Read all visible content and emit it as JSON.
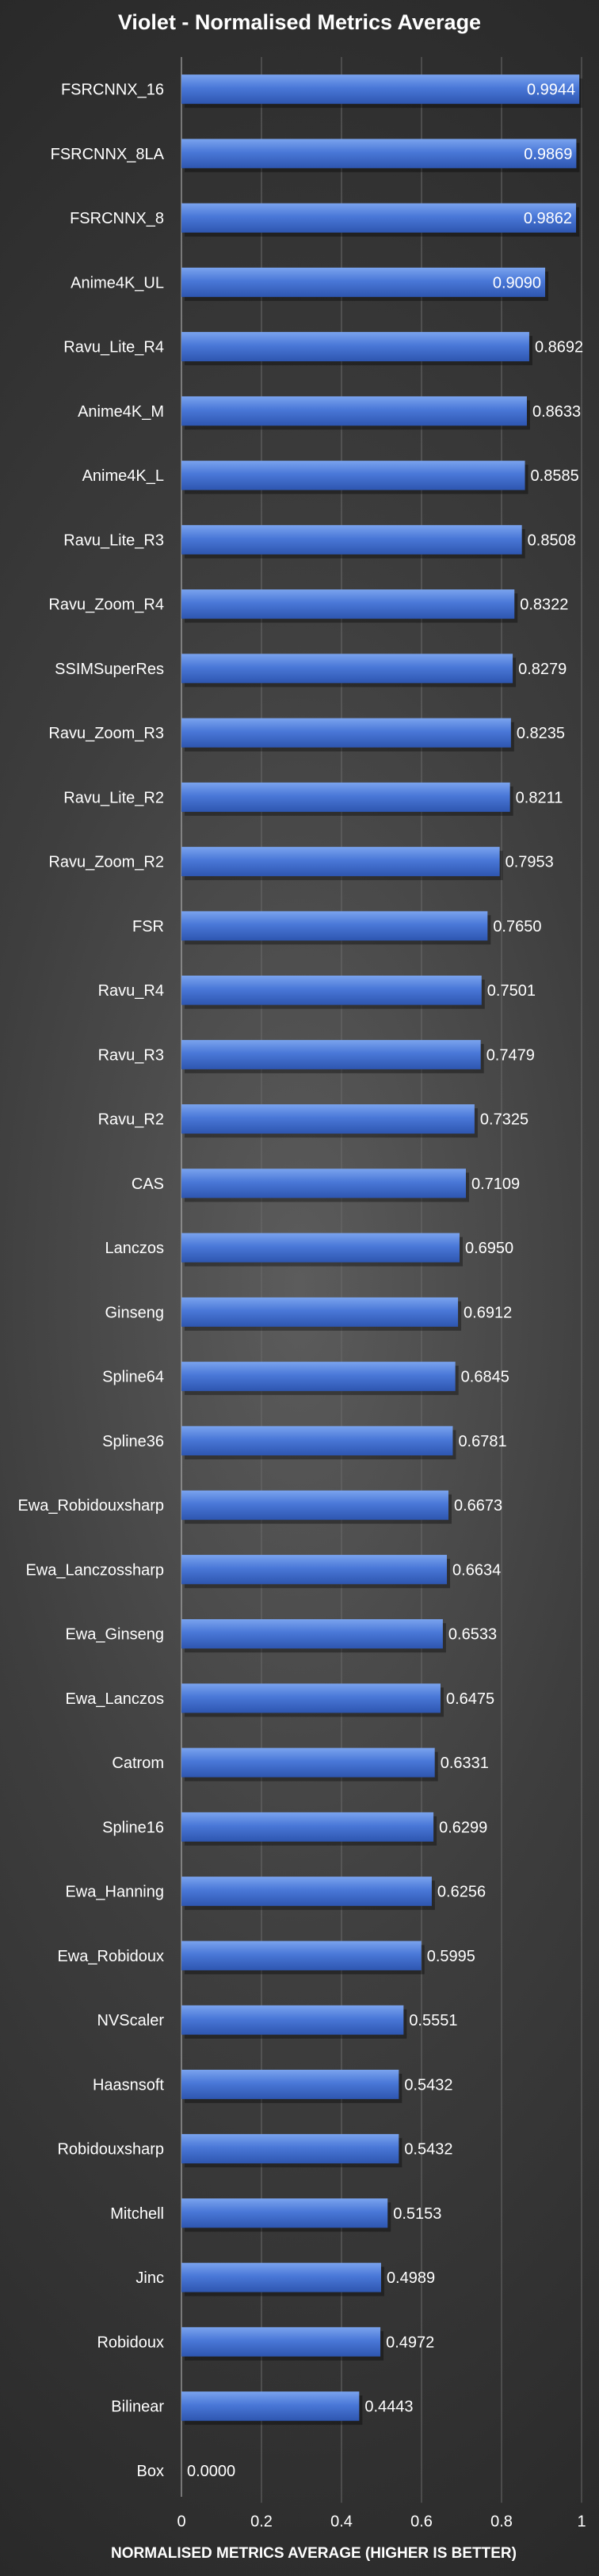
{
  "chart_data": {
    "type": "bar",
    "orientation": "horizontal",
    "title": "Violet - Normalised Metrics Average",
    "xlabel": "NORMALISED METRICS AVERAGE (HIGHER IS BETTER)",
    "ylabel": "",
    "xlim": [
      0,
      1
    ],
    "xticks": [
      "0",
      "0.2",
      "0.4",
      "0.6",
      "0.8",
      "1"
    ],
    "grid": true,
    "legend": "none",
    "bar_color": "#4a78d8",
    "categories": [
      "FSRCNNX_16",
      "FSRCNNX_8LA",
      "FSRCNNX_8",
      "Anime4K_UL",
      "Ravu_Lite_R4",
      "Anime4K_M",
      "Anime4K_L",
      "Ravu_Lite_R3",
      "Ravu_Zoom_R4",
      "SSIMSuperRes",
      "Ravu_Zoom_R3",
      "Ravu_Lite_R2",
      "Ravu_Zoom_R2",
      "FSR",
      "Ravu_R4",
      "Ravu_R3",
      "Ravu_R2",
      "CAS",
      "Lanczos",
      "Ginseng",
      "Spline64",
      "Spline36",
      "Ewa_Robidouxsharp",
      "Ewa_Lanczossharp",
      "Ewa_Ginseng",
      "Ewa_Lanczos",
      "Catrom",
      "Spline16",
      "Ewa_Hanning",
      "Ewa_Robidoux",
      "NVScaler",
      "Haasnsoft",
      "Robidouxsharp",
      "Mitchell",
      "Jinc",
      "Robidoux",
      "Bilinear",
      "Box"
    ],
    "values": [
      0.9944,
      0.9869,
      0.9862,
      0.909,
      0.8692,
      0.8633,
      0.8585,
      0.8508,
      0.8322,
      0.8279,
      0.8235,
      0.8211,
      0.7953,
      0.765,
      0.7501,
      0.7479,
      0.7325,
      0.7109,
      0.695,
      0.6912,
      0.6845,
      0.6781,
      0.6673,
      0.6634,
      0.6533,
      0.6475,
      0.6331,
      0.6299,
      0.6256,
      0.5995,
      0.5551,
      0.5432,
      0.5432,
      0.5153,
      0.4989,
      0.4972,
      0.4443,
      0.0
    ],
    "value_labels": [
      "0.9944",
      "0.9869",
      "0.9862",
      "0.9090",
      "0.8692",
      "0.8633",
      "0.8585",
      "0.8508",
      "0.8322",
      "0.8279",
      "0.8235",
      "0.8211",
      "0.7953",
      "0.7650",
      "0.7501",
      "0.7479",
      "0.7325",
      "0.7109",
      "0.6950",
      "0.6912",
      "0.6845",
      "0.6781",
      "0.6673",
      "0.6634",
      "0.6533",
      "0.6475",
      "0.6331",
      "0.6299",
      "0.6256",
      "0.5995",
      "0.5551",
      "0.5432",
      "0.5432",
      "0.5153",
      "0.4989",
      "0.4972",
      "0.4443",
      "0.0000"
    ]
  }
}
